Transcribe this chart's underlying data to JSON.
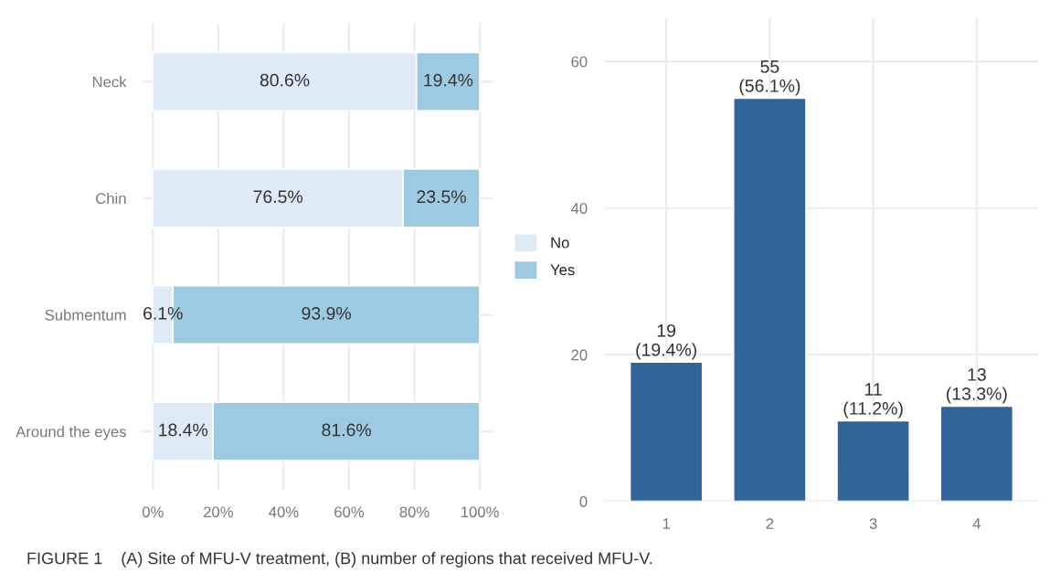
{
  "chart_data": [
    {
      "type": "bar",
      "orientation": "horizontal",
      "stacked": true,
      "categories": [
        "Neck",
        "Chin",
        "Submentum",
        "Around the eyes"
      ],
      "series": [
        {
          "name": "No",
          "color": "#deeaf6",
          "values": [
            80.6,
            76.5,
            6.1,
            18.4
          ],
          "value_labels": [
            "80.6%",
            "76.5%",
            "6.1%",
            "18.4%"
          ]
        },
        {
          "name": "Yes",
          "color": "#9ecae1",
          "values": [
            19.4,
            23.5,
            93.9,
            81.6
          ],
          "value_labels": [
            "19.4%",
            "23.5%",
            "93.9%",
            "81.6%"
          ]
        }
      ],
      "xlim": [
        -3,
        104
      ],
      "xticks": [
        {
          "value": 0,
          "label": "0%"
        },
        {
          "value": 20,
          "label": "20%"
        },
        {
          "value": 40,
          "label": "40%"
        },
        {
          "value": 60,
          "label": "60%"
        },
        {
          "value": 80,
          "label": "80%"
        },
        {
          "value": 100,
          "label": "100%"
        }
      ],
      "grid": true,
      "legend": "right",
      "annotations": [
        "FIGURE 1    (A) Site of MFU-V treatment, (B) number of regions that received MFU-V."
      ]
    },
    {
      "type": "bar",
      "categories": [
        "1",
        "2",
        "3",
        "4"
      ],
      "series": [
        {
          "color": "#31659a",
          "values": [
            19,
            55,
            11,
            13
          ],
          "value_labels": [
            "19\n(19.4%)",
            "55\n(56.1%)",
            "11\n(11.2%)",
            "13\n(13.3%)"
          ]
        }
      ],
      "ylim": [
        0,
        66
      ],
      "yticks": [
        0,
        20,
        40,
        60
      ],
      "grid": true
    }
  ]
}
